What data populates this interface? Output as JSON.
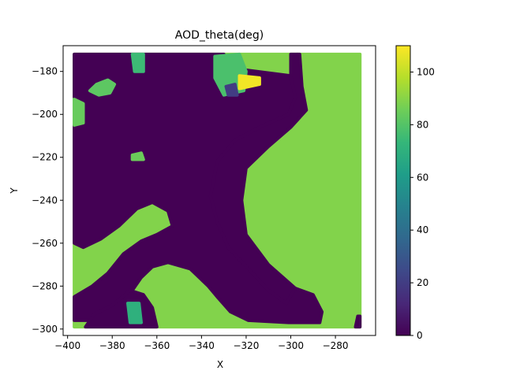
{
  "chart_data": {
    "type": "heatmap",
    "title": "AOD_theta(deg)",
    "xlabel": "X",
    "ylabel": "Y",
    "xlim": [
      -402,
      -262
    ],
    "ylim": [
      -303,
      -168
    ],
    "xticks": [
      -400,
      -380,
      -360,
      -340,
      -320,
      -300,
      -280
    ],
    "yticks": [
      -180,
      -200,
      -220,
      -240,
      -260,
      -280,
      -300
    ],
    "colorbar": {
      "min": 0,
      "max": 110,
      "ticks": [
        0,
        20,
        40,
        60,
        80,
        100
      ],
      "colormap": "viridis"
    },
    "data_extent": {
      "x": [
        -397,
        -269
      ],
      "y": [
        -299,
        -172
      ]
    },
    "regions": [
      {
        "name": "background",
        "value": 89,
        "polygon": [
          [
            -397,
            -172
          ],
          [
            -269,
            -172
          ],
          [
            -269,
            -299
          ],
          [
            -397,
            -299
          ]
        ]
      },
      {
        "name": "main-zero-area",
        "value": 0,
        "polygon": [
          [
            -397,
            -172
          ],
          [
            -330,
            -172
          ],
          [
            -330,
            -178
          ],
          [
            -300,
            -182
          ],
          [
            -297,
            -172
          ],
          [
            -300,
            -182
          ],
          [
            -298,
            -192
          ],
          [
            -301,
            -200
          ],
          [
            -312,
            -205
          ],
          [
            -325,
            -212
          ],
          [
            -333,
            -222
          ],
          [
            -333,
            -240
          ],
          [
            -330,
            -252
          ],
          [
            -328,
            -262
          ],
          [
            -318,
            -273
          ],
          [
            -310,
            -282
          ],
          [
            -302,
            -286
          ],
          [
            -298,
            -281
          ],
          [
            -290,
            -284
          ],
          [
            -286,
            -292
          ],
          [
            -287,
            -297
          ],
          [
            -301,
            -297
          ],
          [
            -319,
            -296
          ],
          [
            -327,
            -292
          ],
          [
            -333,
            -285
          ],
          [
            -337,
            -280
          ],
          [
            -345,
            -272
          ],
          [
            -355,
            -269
          ],
          [
            -362,
            -271
          ],
          [
            -367,
            -276
          ],
          [
            -371,
            -282
          ],
          [
            -380,
            -290
          ],
          [
            -386,
            -296
          ],
          [
            -397,
            -296
          ],
          [
            -397,
            -285
          ],
          [
            -389,
            -280
          ],
          [
            -382,
            -274
          ],
          [
            -375,
            -265
          ],
          [
            -367,
            -259
          ],
          [
            -360,
            -256
          ],
          [
            -353,
            -252
          ],
          [
            -355,
            -245
          ],
          [
            -362,
            -241
          ],
          [
            -369,
            -244
          ],
          [
            -377,
            -252
          ],
          [
            -385,
            -258
          ],
          [
            -393,
            -262
          ],
          [
            -397,
            -260
          ],
          [
            -397,
            -205
          ],
          [
            -392,
            -198
          ],
          [
            -397,
            -192
          ]
        ]
      },
      {
        "name": "right-zero-band",
        "value": 0,
        "polygon": [
          [
            -300,
            -172
          ],
          [
            -300,
            -182
          ],
          [
            -298,
            -192
          ],
          [
            -301,
            -200
          ],
          [
            -312,
            -205
          ],
          [
            -325,
            -212
          ],
          [
            -333,
            -222
          ],
          [
            -336,
            -238
          ],
          [
            -333,
            -250
          ],
          [
            -328,
            -262
          ],
          [
            -318,
            -273
          ],
          [
            -310,
            -282
          ],
          [
            -302,
            -288
          ],
          [
            -298,
            -281
          ],
          [
            -310,
            -270
          ],
          [
            -320,
            -256
          ],
          [
            -322,
            -240
          ],
          [
            -320,
            -225
          ],
          [
            -310,
            -215
          ],
          [
            -300,
            -206
          ],
          [
            -293,
            -198
          ],
          [
            -295,
            -187
          ],
          [
            -296,
            -172
          ]
        ]
      },
      {
        "name": "bottom-left-pocket",
        "value": 0,
        "polygon": [
          [
            -392,
            -299
          ],
          [
            -388,
            -293
          ],
          [
            -380,
            -289
          ],
          [
            -372,
            -282
          ],
          [
            -366,
            -284
          ],
          [
            -362,
            -290
          ],
          [
            -360,
            -299
          ]
        ]
      },
      {
        "name": "bottom-right-corner",
        "value": 0,
        "polygon": [
          [
            -270,
            -294
          ],
          [
            -269,
            -294
          ],
          [
            -269,
            -299
          ],
          [
            -271,
            -299
          ]
        ]
      },
      {
        "name": "island-left",
        "value": 82,
        "polygon": [
          [
            -387,
            -186
          ],
          [
            -382,
            -184
          ],
          [
            -379,
            -186
          ],
          [
            -381,
            -190
          ],
          [
            -386,
            -191
          ],
          [
            -390,
            -189
          ]
        ]
      },
      {
        "name": "island-top",
        "value": 75,
        "polygon": [
          [
            -371,
            -172
          ],
          [
            -366,
            -172
          ],
          [
            -366,
            -180
          ],
          [
            -370,
            -180
          ]
        ]
      },
      {
        "name": "island-small",
        "value": 85,
        "polygon": [
          [
            -371,
            -219
          ],
          [
            -367,
            -218
          ],
          [
            -366,
            -221
          ],
          [
            -371,
            -221
          ]
        ]
      },
      {
        "name": "top-patch-green",
        "value": 78,
        "polygon": [
          [
            -334,
            -173
          ],
          [
            -323,
            -172
          ],
          [
            -320,
            -180
          ],
          [
            -321,
            -189
          ],
          [
            -330,
            -191
          ],
          [
            -334,
            -183
          ]
        ]
      },
      {
        "name": "top-patch-dark",
        "value": 20,
        "polygon": [
          [
            -329,
            -187
          ],
          [
            -325,
            -186
          ],
          [
            -324,
            -191
          ],
          [
            -328,
            -191
          ]
        ]
      },
      {
        "name": "top-patch-yellow",
        "value": 108,
        "polygon": [
          [
            -323,
            -182
          ],
          [
            -314,
            -183
          ],
          [
            -314,
            -186
          ],
          [
            -323,
            -188
          ]
        ]
      },
      {
        "name": "bottom-teal",
        "value": 70,
        "polygon": [
          [
            -373,
            -288
          ],
          [
            -368,
            -288
          ],
          [
            -367,
            -297
          ],
          [
            -372,
            -297
          ]
        ]
      },
      {
        "name": "left-strip",
        "value": 84,
        "polygon": [
          [
            -397,
            -193
          ],
          [
            -393,
            -195
          ],
          [
            -393,
            -204
          ],
          [
            -397,
            -205
          ]
        ]
      }
    ]
  }
}
